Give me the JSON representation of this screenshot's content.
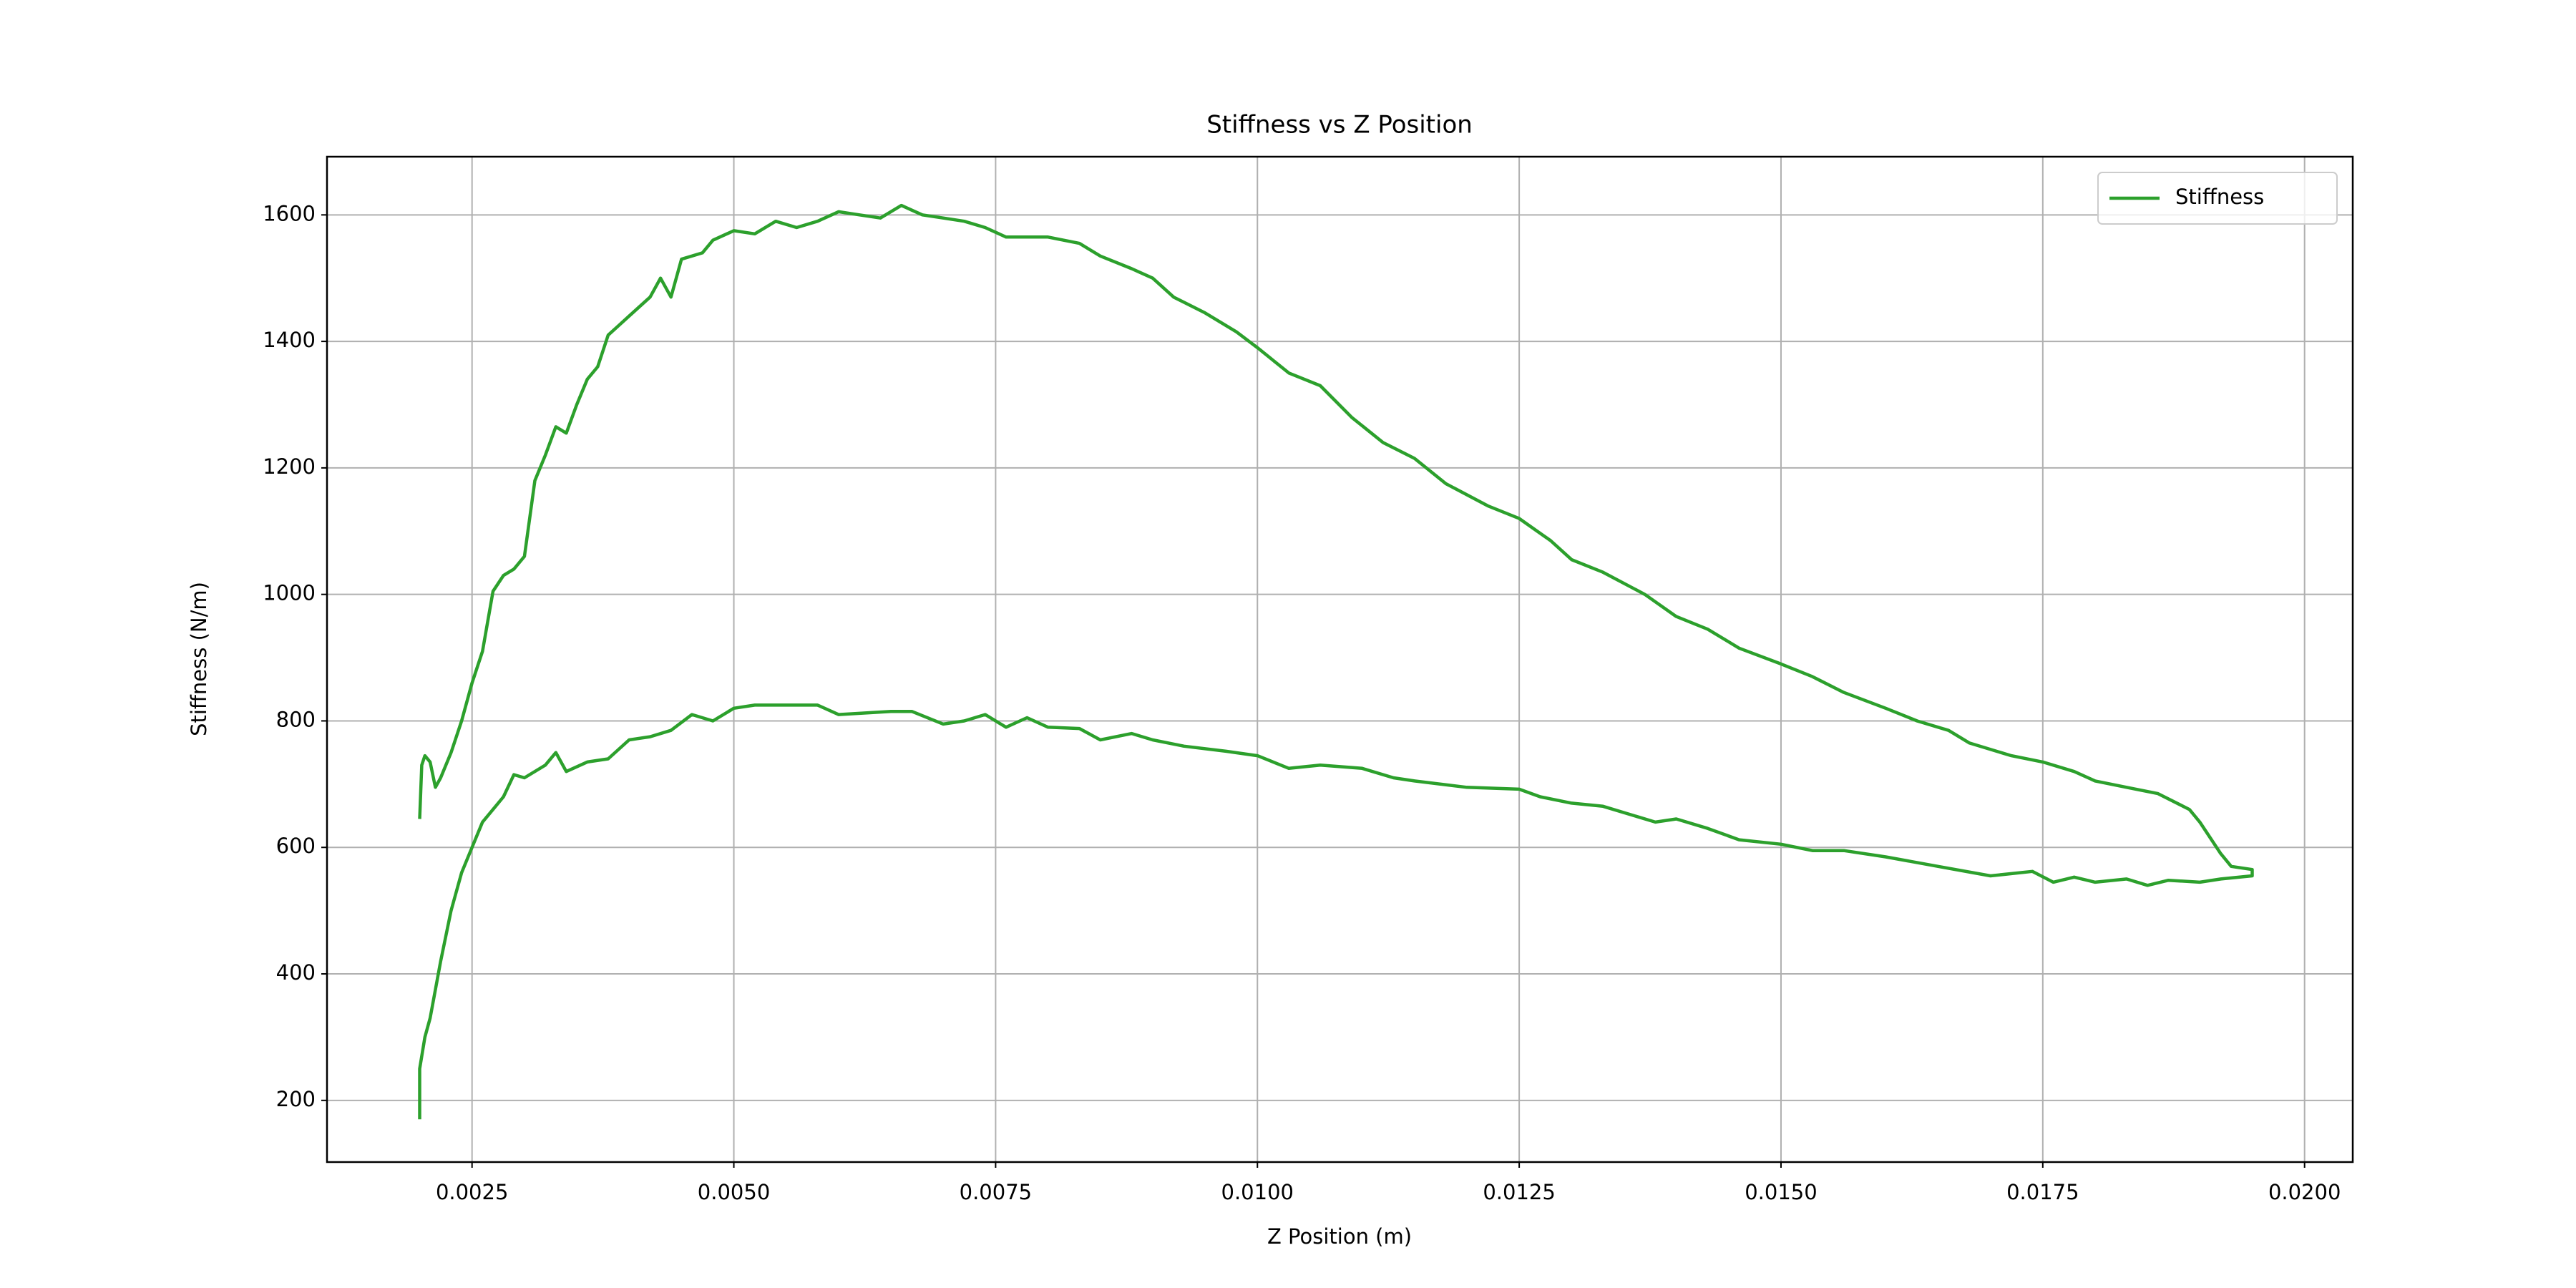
{
  "chart_data": {
    "type": "line",
    "title": "Stiffness vs Z Position",
    "xlabel": "Z Position (m)",
    "ylabel": "Stiffness (N/m)",
    "x": [
      0.002,
      0.00202,
      0.00205,
      0.0021,
      0.00215,
      0.0022,
      0.0023,
      0.0024,
      0.0025,
      0.0026,
      0.0027,
      0.0028,
      0.0029,
      0.003,
      0.0031,
      0.0032,
      0.0033,
      0.0034,
      0.0035,
      0.0036,
      0.0037,
      0.0038,
      0.0039,
      0.004,
      0.0042,
      0.0043,
      0.0044,
      0.0045,
      0.0047,
      0.0048,
      0.005,
      0.0052,
      0.0054,
      0.0056,
      0.0058,
      0.006,
      0.0062,
      0.0064,
      0.0066,
      0.0068,
      0.007,
      0.0072,
      0.0074,
      0.0076,
      0.008,
      0.0083,
      0.0085,
      0.0088,
      0.009,
      0.0092,
      0.0095,
      0.0098,
      0.01,
      0.0103,
      0.0106,
      0.0109,
      0.0112,
      0.0115,
      0.0118,
      0.0122,
      0.0125,
      0.0128,
      0.013,
      0.0133,
      0.0137,
      0.014,
      0.0143,
      0.0146,
      0.015,
      0.0153,
      0.0156,
      0.016,
      0.0163,
      0.0166,
      0.0168,
      0.0172,
      0.0175,
      0.0178,
      0.018,
      0.0183,
      0.0186,
      0.0189,
      0.019,
      0.0192,
      0.0193,
      0.0195,
      0.0195,
      0.0192,
      0.019,
      0.0187,
      0.0185,
      0.0183,
      0.018,
      0.0178,
      0.0176,
      0.0174,
      0.017,
      0.0165,
      0.016,
      0.0156,
      0.0153,
      0.015,
      0.0146,
      0.0143,
      0.014,
      0.0138,
      0.0133,
      0.013,
      0.0127,
      0.0125,
      0.012,
      0.0115,
      0.0113,
      0.011,
      0.0106,
      0.0103,
      0.01,
      0.0097,
      0.0093,
      0.009,
      0.0088,
      0.0085,
      0.0083,
      0.008,
      0.0078,
      0.0076,
      0.0074,
      0.0072,
      0.007,
      0.0067,
      0.0065,
      0.006,
      0.0058,
      0.0055,
      0.0052,
      0.005,
      0.0048,
      0.0046,
      0.0044,
      0.0042,
      0.004,
      0.0038,
      0.0036,
      0.0034,
      0.0033,
      0.0032,
      0.003,
      0.0029,
      0.0028,
      0.0027,
      0.0026,
      0.0025,
      0.0024,
      0.0023,
      0.0022,
      0.0021,
      0.00205,
      0.002,
      0.002
    ],
    "series": [
      {
        "name": "Stiffness",
        "color": "#2ca02c",
        "values": [
          645,
          730,
          745,
          735,
          695,
          710,
          750,
          800,
          860,
          910,
          1005,
          1030,
          1040,
          1060,
          1180,
          1220,
          1265,
          1255,
          1300,
          1340,
          1360,
          1410,
          1425,
          1440,
          1470,
          1500,
          1470,
          1530,
          1540,
          1560,
          1575,
          1570,
          1590,
          1580,
          1590,
          1605,
          1600,
          1595,
          1615,
          1600,
          1595,
          1590,
          1580,
          1565,
          1565,
          1555,
          1535,
          1515,
          1500,
          1470,
          1445,
          1415,
          1390,
          1350,
          1330,
          1280,
          1240,
          1215,
          1175,
          1140,
          1120,
          1085,
          1055,
          1035,
          1000,
          965,
          945,
          915,
          890,
          870,
          845,
          820,
          800,
          785,
          765,
          745,
          735,
          720,
          705,
          695,
          685,
          660,
          640,
          590,
          570,
          565,
          555,
          550,
          545,
          548,
          540,
          550,
          545,
          553,
          545,
          562,
          555,
          570,
          585,
          595,
          595,
          605,
          612,
          630,
          645,
          640,
          665,
          670,
          680,
          692,
          695,
          705,
          710,
          725,
          730,
          725,
          745,
          752,
          760,
          770,
          780,
          770,
          788,
          790,
          805,
          790,
          810,
          800,
          795,
          815,
          815,
          810,
          825,
          825,
          825,
          820,
          800,
          810,
          785,
          775,
          770,
          740,
          735,
          720,
          750,
          730,
          710,
          715,
          680,
          660,
          640,
          600,
          560,
          500,
          420,
          330,
          300,
          250,
          170
        ]
      }
    ],
    "xlim": [
      0.001115,
      0.02046
    ],
    "ylim": [
      102.5,
      1692
    ],
    "xticks": [
      {
        "value": 0.0025,
        "label": "0.0025"
      },
      {
        "value": 0.005,
        "label": "0.0050"
      },
      {
        "value": 0.0075,
        "label": "0.0075"
      },
      {
        "value": 0.01,
        "label": "0.0100"
      },
      {
        "value": 0.0125,
        "label": "0.0125"
      },
      {
        "value": 0.015,
        "label": "0.0150"
      },
      {
        "value": 0.0175,
        "label": "0.0175"
      },
      {
        "value": 0.02,
        "label": "0.0200"
      }
    ],
    "yticks": [
      200,
      400,
      600,
      800,
      1000,
      1200,
      1400,
      1600
    ],
    "grid": true,
    "legend": "upper right"
  }
}
